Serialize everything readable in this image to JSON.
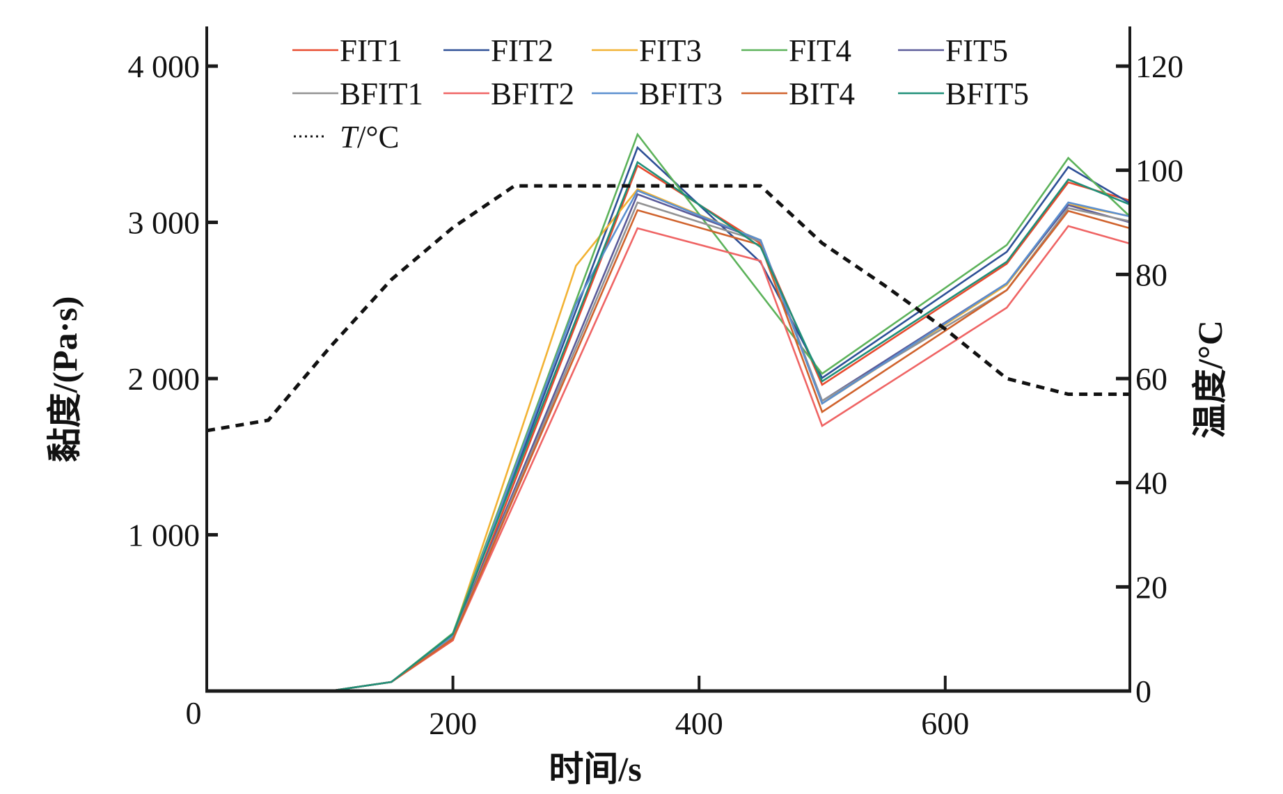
{
  "chart_data": {
    "type": "line",
    "title": "",
    "xlabel": "时间/s",
    "ylabel": "黏度/(Pa·s)",
    "y2label": "温度/°C",
    "xlim": [
      0,
      750
    ],
    "ylim": [
      0,
      4250
    ],
    "y2lim": [
      0,
      127.5
    ],
    "x_ticks": [
      200,
      400,
      600
    ],
    "x_tick_labels": [
      "200",
      "400",
      "600"
    ],
    "x_origin_label": "0",
    "y_ticks": [
      1000,
      2000,
      3000,
      4000
    ],
    "y_tick_labels": [
      "1 000",
      "2 000",
      "3 000",
      "4 000"
    ],
    "y2_ticks": [
      0,
      20,
      40,
      60,
      80,
      100,
      120
    ],
    "y2_tick_labels": [
      "0",
      "20",
      "40",
      "60",
      "80",
      "100",
      "120"
    ],
    "grid": false,
    "legend_position": "top",
    "series": [
      {
        "name": "FIT1",
        "color": "#e84a2e",
        "x": [
          0,
          100,
          150,
          200,
          350,
          450,
          500,
          650,
          700,
          750
        ],
        "values": [
          0,
          0,
          58,
          325,
          3363,
          2864,
          1960,
          2735,
          3256,
          3140
        ]
      },
      {
        "name": "FIT2",
        "color": "#2d4f96",
        "x": [
          0,
          100,
          150,
          200,
          350,
          450,
          500,
          650,
          700,
          750
        ],
        "values": [
          0,
          0,
          58,
          350,
          3479,
          2744,
          2004,
          2811,
          3354,
          3123
        ]
      },
      {
        "name": "FIT3",
        "color": "#f2b233",
        "x": [
          0,
          100,
          150,
          200,
          300,
          350,
          450,
          500,
          650,
          700,
          750
        ],
        "values": [
          0,
          0,
          58,
          360,
          2722,
          3212,
          2886,
          1840,
          2600,
          3114,
          3040
        ]
      },
      {
        "name": "FIT4",
        "color": "#5cb25a",
        "x": [
          0,
          100,
          150,
          200,
          350,
          500,
          650,
          700,
          750
        ],
        "values": [
          0,
          0,
          58,
          370,
          3563,
          2031,
          2855,
          3412,
          3038
        ]
      },
      {
        "name": "FIT5",
        "color": "#5b5b99",
        "x": [
          0,
          100,
          150,
          200,
          350,
          450,
          500,
          650,
          700,
          750
        ],
        "values": [
          0,
          0,
          58,
          345,
          3180,
          2886,
          1857,
          2610,
          3110,
          3000
        ]
      },
      {
        "name": "BFIT1",
        "color": "#929292",
        "x": [
          0,
          100,
          150,
          200,
          350,
          450,
          500,
          650,
          700,
          750
        ],
        "values": [
          0,
          0,
          58,
          340,
          3127,
          2878,
          1857,
          2566,
          3091,
          3007
        ]
      },
      {
        "name": "BFIT2",
        "color": "#ef6464",
        "x": [
          0,
          100,
          150,
          200,
          350,
          450,
          500,
          650,
          700,
          750
        ],
        "values": [
          0,
          0,
          58,
          330,
          2962,
          2753,
          1697,
          2454,
          2976,
          2864
        ]
      },
      {
        "name": "BFIT3",
        "color": "#5b8fcf",
        "x": [
          0,
          100,
          150,
          200,
          300,
          350,
          450,
          500,
          650,
          700,
          750
        ],
        "values": [
          0,
          0,
          58,
          355,
          2477,
          3203,
          2886,
          1840,
          2610,
          3127,
          3038
        ]
      },
      {
        "name": "BIT4",
        "color": "#d0622c",
        "x": [
          0,
          100,
          150,
          200,
          350,
          450,
          500,
          650,
          700,
          750
        ],
        "values": [
          0,
          0,
          58,
          335,
          3078,
          2855,
          1786,
          2566,
          3073,
          2962
        ]
      },
      {
        "name": "BFIT5",
        "color": "#1f8f78",
        "x": [
          0,
          100,
          150,
          200,
          350,
          450,
          500,
          650,
          700,
          750
        ],
        "values": [
          0,
          0,
          58,
          365,
          3385,
          2842,
          1982,
          2748,
          3274,
          3114
        ]
      }
    ],
    "temperature_series": {
      "name": "T/°C",
      "name_italic_part": "T",
      "name_rest": "/°C",
      "color": "#111111",
      "axis": "right",
      "style": "dashed",
      "x": [
        0,
        50,
        100,
        150,
        200,
        250,
        450,
        500,
        550,
        600,
        650,
        700,
        750
      ],
      "values": [
        50,
        52,
        66,
        79,
        89,
        97,
        97,
        86,
        78,
        69.5,
        60,
        57,
        57
      ]
    }
  }
}
